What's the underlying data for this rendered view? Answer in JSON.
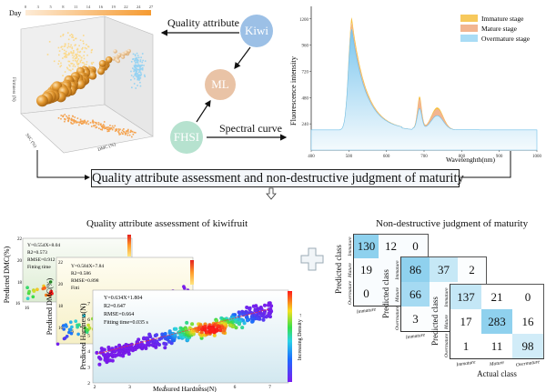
{
  "top": {
    "scatter3d": {
      "colorbar_label": "Day",
      "colorbar_ticks": [
        "0",
        "3",
        "5",
        "8",
        "11",
        "14",
        "16",
        "19",
        "22",
        "24",
        "27"
      ],
      "z_label": "Firmness (N)",
      "x_label": "DMC (%)",
      "y_label": "SSC (%)",
      "colors": {
        "bar_start": "#fde8cf",
        "bar_end": "#f5a03a",
        "spheres": "#e59a2f",
        "yz_proj": "#fde2a0",
        "xz_proj": "#9ed6f2",
        "xy_proj": "#f6a85a"
      }
    },
    "nodes": {
      "kiwi": {
        "label": "Kiwi",
        "color": "#9cc0e6"
      },
      "ml": {
        "label": "ML",
        "color": "#e9c3a6"
      },
      "fhsi": {
        "label": "FHSI",
        "color": "#b6e2cf"
      }
    },
    "arrows": {
      "quality_attribute": "Quality attribute",
      "spectral_curve": "Spectral curve"
    },
    "spectrum": {
      "ylabel": "Fluorescence intensity",
      "xlabel": "Wavelenghth(nm)",
      "yticks": [
        "240",
        "480",
        "720",
        "960",
        "1200"
      ],
      "xticks": [
        "400",
        "500",
        "600",
        "700",
        "800",
        "900",
        "1000"
      ],
      "legend": [
        {
          "label": "Immature stage",
          "color": "#f6c040"
        },
        {
          "label": "Mature stage",
          "color": "#f0a878"
        },
        {
          "label": "Overmature stage",
          "color": "#8ccff0"
        }
      ]
    }
  },
  "center_title": "Quality attribute assessment and non-destructive judgment of maturity",
  "bottom_left": {
    "title": "Quality attribute assessment of kiwifruit",
    "panels": [
      {
        "eq": "Y=0.554X+8.04",
        "r2": "R2=0.573",
        "rmse": "RMSE=0.912",
        "fit": "Fitting time",
        "ylabel": "Predicted DMC(%)",
        "yticks": [
          "16",
          "18",
          "20",
          "22"
        ],
        "xtick": "16"
      },
      {
        "eq": "Y=0.584X+7.84",
        "r2": "R2=0.586",
        "rmse": "RMSE=0.898",
        "fit": "Fitti",
        "ylabel": "Predicted DMC(%)",
        "yticks": [
          "16",
          "18",
          "20",
          "22"
        ],
        "xtick": "16"
      },
      {
        "eq": "Y=0.634X+1.804",
        "r2": "R2=0.647",
        "rmse": "RMSE=0.664",
        "fit": "Fitting time=0.035 s",
        "ylabel": "Predicted Hardness(N)",
        "xlabel": "Measured Hardness(N)",
        "yticks": [
          "2",
          "3",
          "4",
          "5",
          "6",
          "7"
        ],
        "xticks": [
          "2",
          "3",
          "4",
          "5",
          "6",
          "7"
        ],
        "colorbar_label": "Increasing Density →"
      }
    ]
  },
  "bottom_right": {
    "title": "Non-destructive judgment of maturity",
    "xlabel": "Actual class",
    "ylabel": "Predicted class",
    "classes": [
      "Immature",
      "Mature",
      "Overmature"
    ],
    "matrices": [
      [
        [
          130,
          12,
          0
        ],
        [
          19,
          null,
          null
        ],
        [
          0,
          null,
          null
        ]
      ],
      [
        [
          86,
          37,
          2
        ],
        [
          66,
          null,
          null
        ],
        [
          3,
          null,
          null
        ]
      ],
      [
        [
          137,
          21,
          0
        ],
        [
          17,
          283,
          16
        ],
        [
          1,
          11,
          98
        ]
      ]
    ]
  }
}
